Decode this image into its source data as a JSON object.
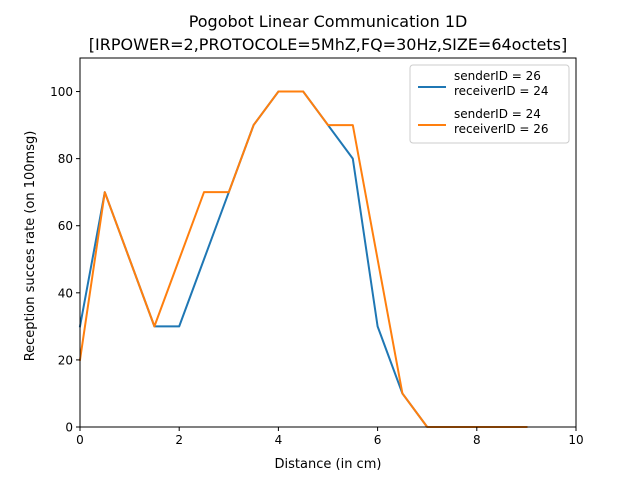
{
  "chart_data": {
    "type": "line",
    "title": "Pogobot Linear Communication 1D",
    "subtitle": "[IRPOWER=2,PROTOCOLE=5MhZ,FQ=30Hz,SIZE=64octets]",
    "xlabel": "Distance (in cm)",
    "ylabel": "Reception succes rate (on 100msg)",
    "xlim": [
      0,
      10
    ],
    "ylim": [
      0,
      110
    ],
    "xticks": [
      0,
      2,
      4,
      6,
      8,
      10
    ],
    "yticks": [
      0,
      20,
      40,
      60,
      80,
      100
    ],
    "grid": false,
    "legend_position": "top-right",
    "series": [
      {
        "name_lines": [
          "senderID = 26",
          "receiverID = 24"
        ],
        "color": "#1f77b4",
        "x": [
          0,
          0.5,
          1,
          1.5,
          2,
          2.5,
          3,
          3.5,
          4,
          4.5,
          5,
          5.5,
          6,
          6.5,
          7,
          7.5,
          8,
          8.5,
          9
        ],
        "y": [
          30,
          70,
          50,
          30,
          30,
          50,
          70,
          90,
          100,
          100,
          90,
          80,
          30,
          10,
          0,
          0,
          0,
          0,
          0
        ]
      },
      {
        "name_lines": [
          "senderID = 24",
          "receiverID = 26"
        ],
        "color": "#ff7f0e",
        "x": [
          0,
          0.5,
          1,
          1.5,
          2,
          2.5,
          3,
          3.5,
          4,
          4.5,
          5,
          5.5,
          6,
          6.5,
          7,
          7.5,
          8,
          8.5,
          9
        ],
        "y": [
          20,
          70,
          50,
          30,
          50,
          70,
          70,
          90,
          100,
          100,
          90,
          90,
          50,
          10,
          0,
          0,
          0,
          0,
          0
        ]
      }
    ]
  }
}
